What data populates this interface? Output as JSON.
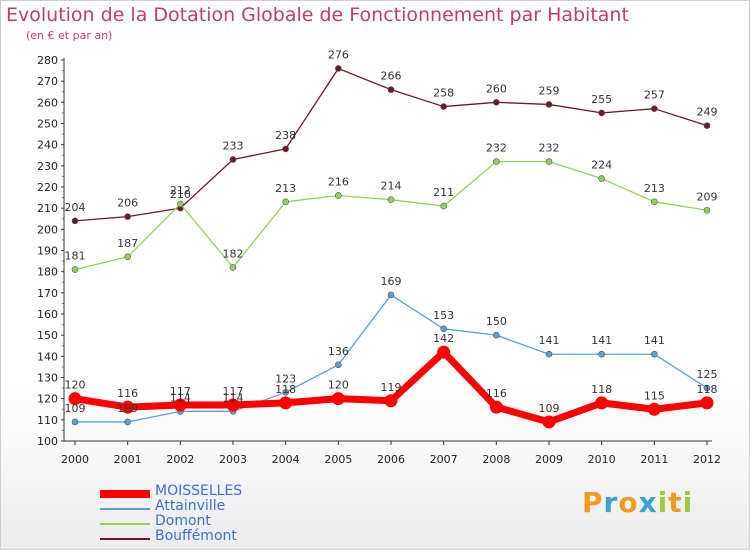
{
  "title": "Evolution de la Dotation Globale de Fonctionnement par Habitant",
  "subtitle": "(en € et par an)",
  "logo": {
    "text": "Proxiti",
    "letters": [
      {
        "ch": "P",
        "color": "#f29a1e"
      },
      {
        "ch": "r",
        "color": "#3aa0d8"
      },
      {
        "ch": "o",
        "color": "#f29a1e"
      },
      {
        "ch": "x",
        "color": "#3aa0d8"
      },
      {
        "ch": "i",
        "color": "#9ccc3c"
      },
      {
        "ch": "t",
        "color": "#f29a1e"
      },
      {
        "ch": "i",
        "color": "#9ccc3c"
      }
    ]
  },
  "chart_data": {
    "type": "line",
    "x": [
      2000,
      2001,
      2002,
      2003,
      2004,
      2005,
      2006,
      2007,
      2008,
      2009,
      2010,
      2011,
      2012
    ],
    "ylim": [
      100,
      280
    ],
    "ytick_step": 10,
    "grid": false,
    "legend_position": "bottom-left",
    "series": [
      {
        "name": "Bouffémont",
        "color": "#6b1a22",
        "values": [
          204,
          206,
          210,
          233,
          238,
          276,
          266,
          258,
          260,
          259,
          255,
          257,
          249
        ]
      },
      {
        "name": "Domont",
        "color": "#8fd45a",
        "values": [
          181,
          187,
          212,
          182,
          213,
          216,
          214,
          211,
          232,
          232,
          224,
          213,
          209
        ]
      },
      {
        "name": "Attainville",
        "color": "#5a9fd4",
        "values": [
          109,
          109,
          114,
          114,
          123,
          136,
          169,
          153,
          150,
          141,
          141,
          141,
          125
        ]
      },
      {
        "name": "MOISSELLES",
        "color": "#ff0000",
        "values": [
          120,
          116,
          117,
          117,
          118,
          120,
          119,
          142,
          116,
          109,
          118,
          115,
          118
        ]
      }
    ]
  },
  "legend": [
    {
      "name": "MOISSELLES",
      "color": "#ff0000",
      "text_color": "#3a6fd8"
    },
    {
      "name": "Attainville",
      "color": "#5a9fd4",
      "text_color": "#3a6fd8"
    },
    {
      "name": "Domont",
      "color": "#8fd45a",
      "text_color": "#3a6fd8"
    },
    {
      "name": "Bouffémont",
      "color": "#6b1a22",
      "text_color": "#3a6fd8"
    }
  ]
}
